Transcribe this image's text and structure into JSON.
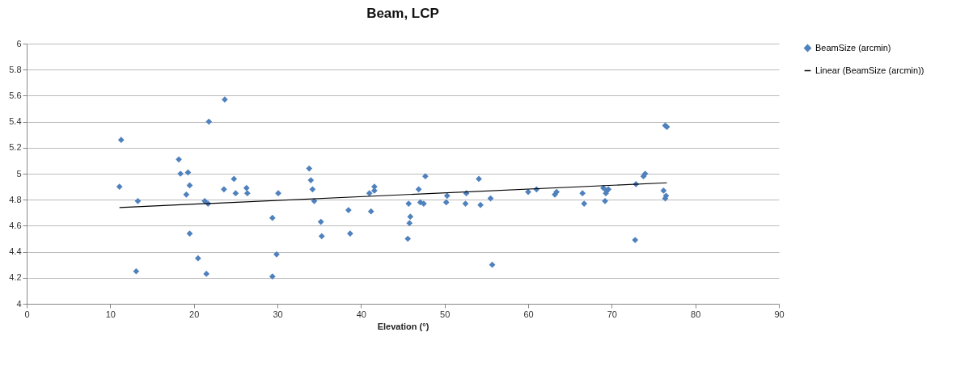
{
  "chart_data": {
    "type": "scatter",
    "title": "Beam, LCP",
    "xlabel": "Elevation (°)",
    "xlim": [
      0,
      90
    ],
    "xticks": [
      0,
      10,
      20,
      30,
      40,
      50,
      60,
      70,
      80,
      90
    ],
    "ylim": [
      4,
      6
    ],
    "yticks": [
      4,
      4.2,
      4.4,
      4.6,
      4.8,
      5,
      5.2,
      5.4,
      5.6,
      5.8,
      6
    ],
    "grid": "y",
    "legend": "right",
    "series": [
      {
        "name": "BeamSize (arcmin)",
        "color": "#4f81bd",
        "marker": "diamond",
        "x": [
          11.3,
          11.1,
          13.3,
          13.1,
          18.2,
          18.4,
          19.3,
          19.5,
          19.1,
          19.5,
          20.5,
          21.5,
          21.3,
          21.7,
          21.8,
          23.7,
          23.6,
          24.8,
          25.0,
          26.3,
          26.4,
          29.4,
          29.4,
          29.9,
          30.1,
          33.8,
          34.0,
          34.2,
          34.4,
          35.2,
          35.3,
          38.5,
          38.7,
          41.0,
          41.2,
          41.6,
          41.6,
          45.7,
          45.6,
          45.8,
          45.9,
          46.9,
          47.1,
          47.5,
          47.7,
          50.2,
          50.3,
          52.5,
          52.6,
          54.1,
          54.3,
          55.5,
          55.7,
          60.0,
          61.0,
          63.2,
          63.4,
          66.5,
          66.7,
          69.0,
          69.2,
          69.4,
          69.6,
          69.3,
          72.8,
          72.9,
          73.8,
          74.0,
          76.2,
          76.4,
          76.4,
          76.6,
          76.5
        ],
        "values": [
          5.26,
          4.9,
          4.79,
          4.25,
          5.11,
          5.0,
          5.01,
          4.91,
          4.84,
          4.54,
          4.35,
          4.23,
          4.79,
          4.77,
          5.4,
          5.57,
          4.88,
          4.96,
          4.85,
          4.89,
          4.85,
          4.66,
          4.21,
          4.38,
          4.85,
          5.04,
          4.95,
          4.88,
          4.79,
          4.63,
          4.52,
          4.72,
          4.54,
          4.85,
          4.71,
          4.9,
          4.87,
          4.77,
          4.5,
          4.62,
          4.67,
          4.88,
          4.78,
          4.77,
          4.98,
          4.78,
          4.83,
          4.77,
          4.85,
          4.96,
          4.76,
          4.81,
          4.3,
          4.86,
          4.88,
          4.84,
          4.86,
          4.85,
          4.77,
          4.89,
          4.79,
          4.87,
          4.88,
          4.85,
          4.49,
          4.92,
          4.98,
          5.0,
          4.87,
          4.81,
          5.37,
          5.36,
          4.83
        ]
      },
      {
        "type": "line",
        "name": "Linear (BeamSize (arcmin))",
        "color": "#000000",
        "x": [
          11.1,
          76.6
        ],
        "values": [
          4.74,
          4.93
        ]
      }
    ]
  }
}
